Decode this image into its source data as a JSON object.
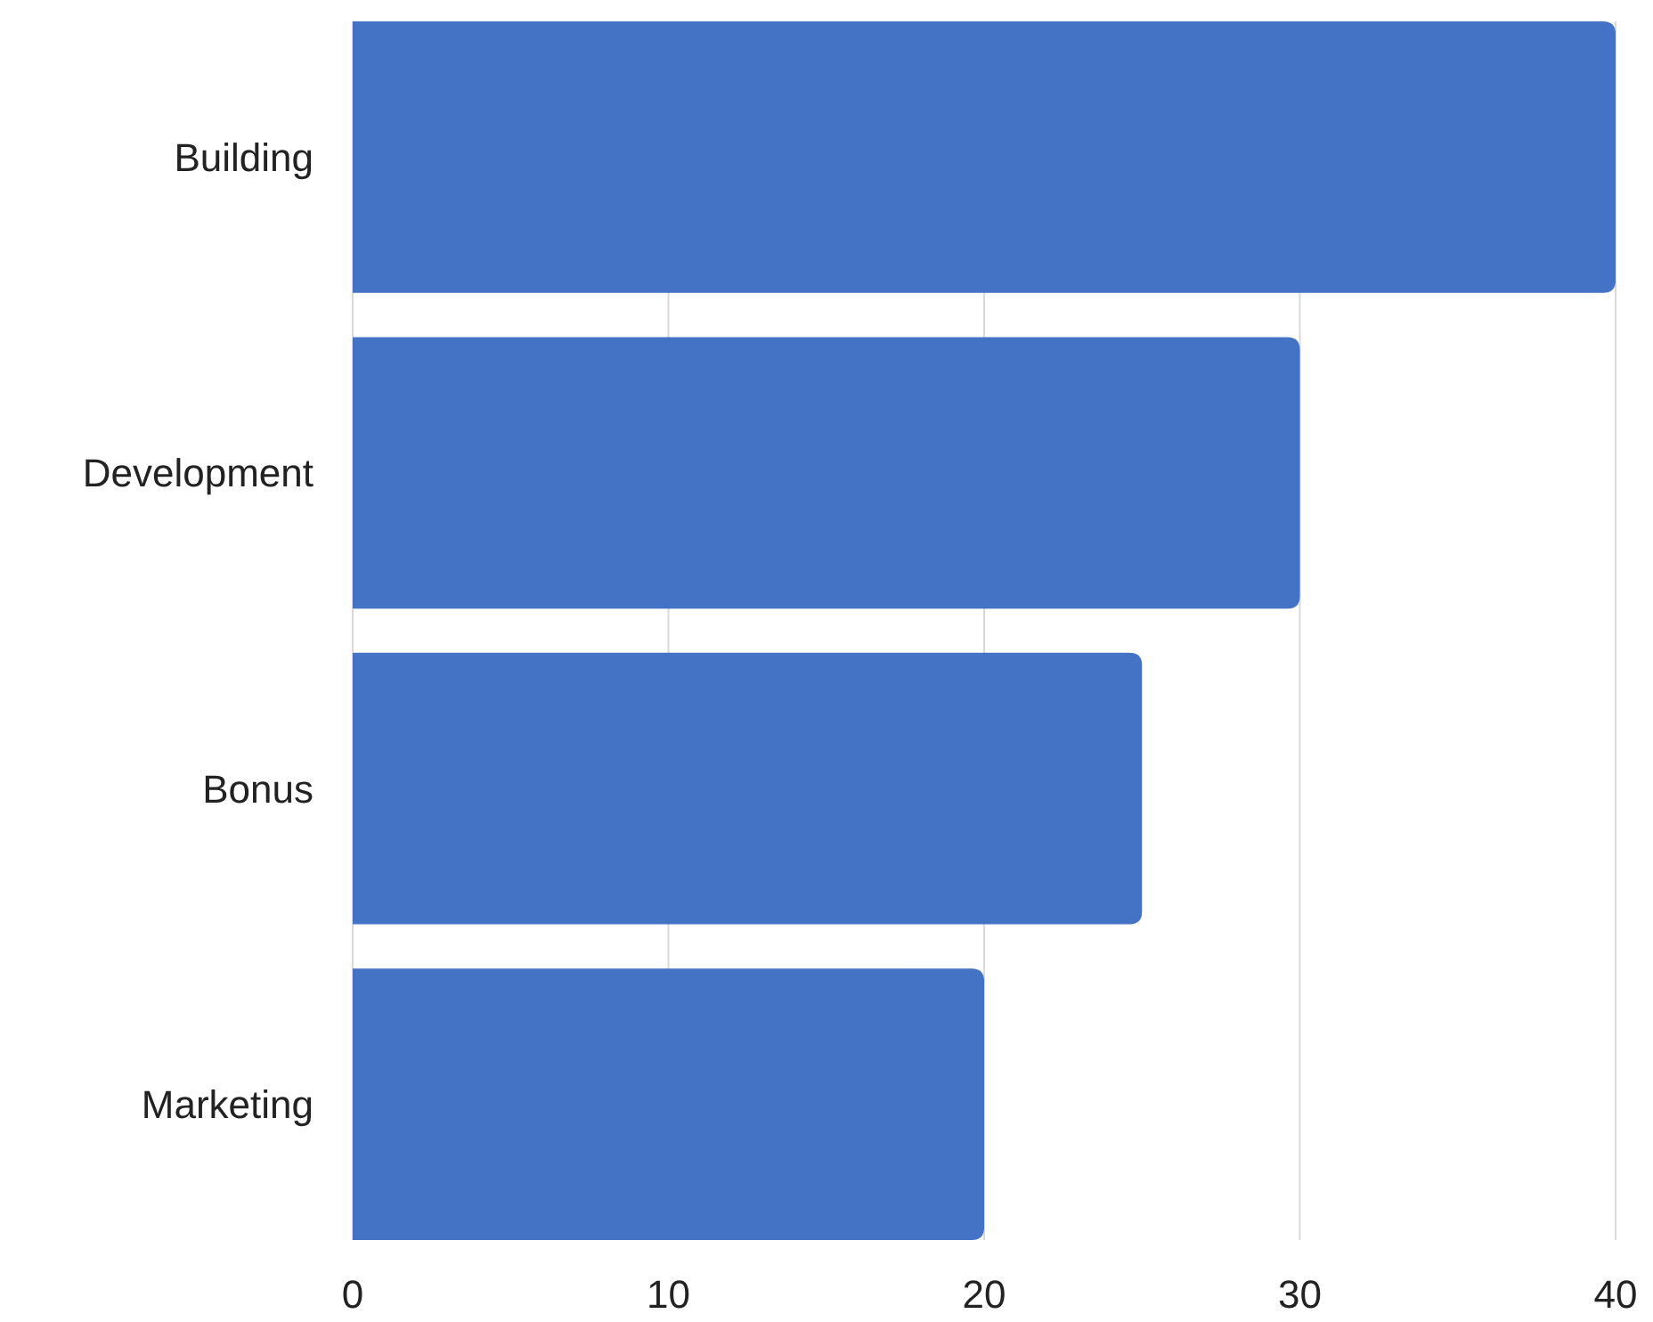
{
  "chart_data": {
    "type": "bar",
    "orientation": "horizontal",
    "categories": [
      "Building",
      "Development",
      "Bonus",
      "Marketing"
    ],
    "values": [
      40,
      30,
      25,
      20
    ],
    "color": "#4472c4",
    "xlim": [
      0,
      40
    ],
    "xticks": [
      0,
      10,
      20,
      30,
      40
    ],
    "grid": "x"
  }
}
